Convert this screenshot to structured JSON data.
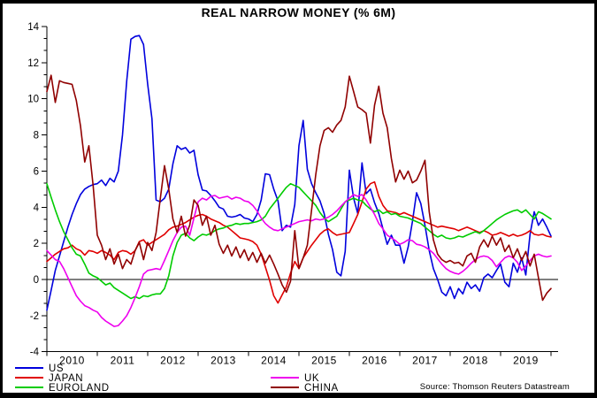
{
  "chart_data": {
    "type": "line",
    "title": "REAL NARROW MONEY (% 6M)",
    "source": "Source: Thomson Reuters Datastream",
    "x_start_year": 2010,
    "x_points_per_year": 12,
    "x_tick_years": [
      "2010",
      "2011",
      "2012",
      "2013",
      "2014",
      "2015",
      "2016",
      "2017",
      "2018",
      "2019"
    ],
    "ylim": [
      -4,
      14
    ],
    "y_ticks": [
      -4,
      -2,
      0,
      2,
      4,
      6,
      8,
      10,
      12,
      14
    ],
    "zero_line": true,
    "grid": false,
    "legend_position": "bottom",
    "series": [
      {
        "name": "US",
        "color": "#0000dd",
        "values": [
          -1.7,
          -0.6,
          0.5,
          1.3,
          2.1,
          2.9,
          3.6,
          4.2,
          4.7,
          5.0,
          5.15,
          5.25,
          5.3,
          5.5,
          5.2,
          5.6,
          5.4,
          6.0,
          8.0,
          11.0,
          13.3,
          13.45,
          13.5,
          13.0,
          10.8,
          8.9,
          4.4,
          4.3,
          4.5,
          5.0,
          6.4,
          7.4,
          7.2,
          7.3,
          7.0,
          7.15,
          5.8,
          4.95,
          4.9,
          4.65,
          4.35,
          4.0,
          3.9,
          3.5,
          3.45,
          3.5,
          3.6,
          3.4,
          3.35,
          3.2,
          3.6,
          4.4,
          5.85,
          5.8,
          5.0,
          4.35,
          2.7,
          3.0,
          2.9,
          4.15,
          7.4,
          8.8,
          6.1,
          5.3,
          4.8,
          4.35,
          3.65,
          2.5,
          1.65,
          0.4,
          0.2,
          1.55,
          6.05,
          4.5,
          3.65,
          6.45,
          4.75,
          5.0,
          4.25,
          3.65,
          2.8,
          1.95,
          2.45,
          1.9,
          1.9,
          0.9,
          1.8,
          3.2,
          4.8,
          4.2,
          3.0,
          1.6,
          0.6,
          0.0,
          -0.7,
          -0.9,
          -0.4,
          -1.05,
          -0.5,
          -0.8,
          -0.15,
          -0.5,
          -0.3,
          -0.65,
          0.1,
          0.3,
          0.1,
          0.5,
          0.85,
          -0.15,
          -0.4,
          0.9,
          0.4,
          1.2,
          0.25,
          2.5,
          3.75,
          3.0,
          3.35,
          2.9,
          2.4
        ]
      },
      {
        "name": "JAPAN",
        "color": "#e00000",
        "values": [
          1.0,
          1.2,
          1.4,
          1.55,
          1.7,
          1.75,
          1.9,
          1.7,
          1.6,
          1.35,
          1.6,
          1.55,
          1.45,
          1.6,
          1.5,
          1.35,
          1.1,
          1.5,
          1.6,
          1.55,
          1.4,
          1.6,
          2.1,
          2.2,
          1.9,
          2.05,
          2.2,
          2.35,
          2.5,
          2.75,
          2.9,
          2.95,
          3.05,
          3.15,
          3.3,
          3.45,
          3.55,
          3.6,
          3.5,
          3.35,
          3.25,
          3.15,
          3.0,
          2.9,
          2.7,
          2.5,
          2.3,
          2.25,
          2.2,
          2.1,
          1.9,
          1.4,
          0.7,
          -0.05,
          -0.9,
          -1.3,
          -0.85,
          -0.4,
          0.35,
          1.0,
          0.6,
          1.2,
          1.55,
          1.9,
          2.2,
          2.5,
          2.7,
          2.8,
          2.6,
          2.45,
          2.5,
          2.55,
          2.6,
          3.1,
          3.6,
          4.3,
          5.0,
          5.3,
          5.4,
          4.6,
          4.1,
          3.8,
          3.75,
          3.7,
          3.6,
          3.7,
          3.6,
          3.5,
          3.4,
          3.3,
          3.2,
          3.1,
          3.0,
          2.9,
          2.95,
          2.9,
          2.85,
          2.8,
          2.7,
          2.8,
          2.9,
          2.8,
          2.7,
          2.6,
          2.7,
          2.6,
          2.45,
          2.5,
          2.6,
          2.5,
          2.4,
          2.5,
          2.4,
          2.45,
          2.55,
          2.7,
          2.5,
          2.45,
          2.5,
          2.4,
          2.35
        ]
      },
      {
        "name": "EUROLAND",
        "color": "#00cc00",
        "values": [
          5.3,
          4.55,
          3.85,
          3.2,
          2.65,
          2.2,
          1.75,
          1.4,
          1.3,
          0.85,
          0.35,
          0.2,
          0.1,
          -0.1,
          -0.3,
          -0.2,
          -0.45,
          -0.6,
          -0.75,
          -0.9,
          -1.05,
          -0.95,
          -1.05,
          -0.9,
          -0.95,
          -0.85,
          -0.8,
          -0.8,
          -0.5,
          0.2,
          1.3,
          2.05,
          2.45,
          2.55,
          2.3,
          2.15,
          2.35,
          2.5,
          2.45,
          2.55,
          2.7,
          2.8,
          2.85,
          2.95,
          3.0,
          3.1,
          3.05,
          3.1,
          3.1,
          3.15,
          3.2,
          3.3,
          3.5,
          3.9,
          4.2,
          4.5,
          4.8,
          5.1,
          5.3,
          5.2,
          5.1,
          4.85,
          4.6,
          4.35,
          4.1,
          3.7,
          3.4,
          3.2,
          3.35,
          3.5,
          3.9,
          4.3,
          4.4,
          4.5,
          4.4,
          4.35,
          4.1,
          3.9,
          3.75,
          3.85,
          3.65,
          3.75,
          3.6,
          3.65,
          3.5,
          3.45,
          3.4,
          3.3,
          3.2,
          3.1,
          2.9,
          2.7,
          2.5,
          2.35,
          2.45,
          2.3,
          2.25,
          2.3,
          2.4,
          2.35,
          2.45,
          2.55,
          2.65,
          2.55,
          2.7,
          2.9,
          3.1,
          3.3,
          3.45,
          3.6,
          3.7,
          3.8,
          3.85,
          3.7,
          3.85,
          3.6,
          3.35,
          3.75,
          3.65,
          3.5,
          3.35
        ]
      },
      {
        "name": "UK",
        "color": "#ee00ee",
        "values": [
          1.6,
          1.35,
          1.1,
          1.0,
          0.6,
          0.1,
          -0.4,
          -0.9,
          -1.2,
          -1.45,
          -1.55,
          -1.7,
          -1.8,
          -2.1,
          -2.3,
          -2.45,
          -2.6,
          -2.55,
          -2.3,
          -2.0,
          -1.55,
          -1.0,
          -0.4,
          0.3,
          0.5,
          0.55,
          0.6,
          0.55,
          1.05,
          1.6,
          2.15,
          2.6,
          2.9,
          2.95,
          2.45,
          3.4,
          4.3,
          4.5,
          4.4,
          4.6,
          4.65,
          4.5,
          4.55,
          4.6,
          4.45,
          4.55,
          4.5,
          4.35,
          4.3,
          4.1,
          3.8,
          3.4,
          3.1,
          2.9,
          2.75,
          2.7,
          2.8,
          2.9,
          3.0,
          3.1,
          3.2,
          3.25,
          3.3,
          3.25,
          3.35,
          3.3,
          3.35,
          3.45,
          3.6,
          3.8,
          4.05,
          4.3,
          4.5,
          4.7,
          4.6,
          4.7,
          4.4,
          4.0,
          3.6,
          3.1,
          2.8,
          2.45,
          2.3,
          2.15,
          1.95,
          2.05,
          2.2,
          2.15,
          1.95,
          1.9,
          1.8,
          1.65,
          1.45,
          1.15,
          0.85,
          0.6,
          0.45,
          0.35,
          0.3,
          0.45,
          0.65,
          0.9,
          1.1,
          1.25,
          1.3,
          1.25,
          1.05,
          0.7,
          0.95,
          1.2,
          1.3,
          1.2,
          0.95,
          0.5,
          0.75,
          1.05,
          1.3,
          1.4,
          1.3,
          1.25,
          1.3
        ]
      },
      {
        "name": "CHINA",
        "color": "#900000",
        "values": [
          10.4,
          11.3,
          9.8,
          11.0,
          10.9,
          10.85,
          10.8,
          9.9,
          8.5,
          6.5,
          7.4,
          5.2,
          2.45,
          1.9,
          1.1,
          1.7,
          0.85,
          1.4,
          0.6,
          1.1,
          0.85,
          1.6,
          2.05,
          1.1,
          2.05,
          1.6,
          2.6,
          4.5,
          6.3,
          5.0,
          3.35,
          2.6,
          3.5,
          2.4,
          3.0,
          4.4,
          4.1,
          3.0,
          3.5,
          2.45,
          3.0,
          1.95,
          1.45,
          1.9,
          1.3,
          1.8,
          1.2,
          1.65,
          1.05,
          1.5,
          0.95,
          1.45,
          0.9,
          1.35,
          0.85,
          0.3,
          -0.3,
          -0.7,
          -0.1,
          2.7,
          0.6,
          1.2,
          1.9,
          3.85,
          5.8,
          7.4,
          8.25,
          8.4,
          8.15,
          8.55,
          8.8,
          9.55,
          11.25,
          10.4,
          9.55,
          9.4,
          9.2,
          7.55,
          9.65,
          10.7,
          9.2,
          8.4,
          6.7,
          5.4,
          6.05,
          5.55,
          6.0,
          5.35,
          5.5,
          6.0,
          6.6,
          3.75,
          2.2,
          1.4,
          1.1,
          0.95,
          1.05,
          0.9,
          0.95,
          0.75,
          1.3,
          1.45,
          0.95,
          1.8,
          2.2,
          1.8,
          2.4,
          1.9,
          2.3,
          1.55,
          1.9,
          1.2,
          1.7,
          1.05,
          1.55,
          0.75,
          1.4,
          0.1,
          -1.15,
          -0.75,
          -0.5
        ]
      }
    ]
  }
}
